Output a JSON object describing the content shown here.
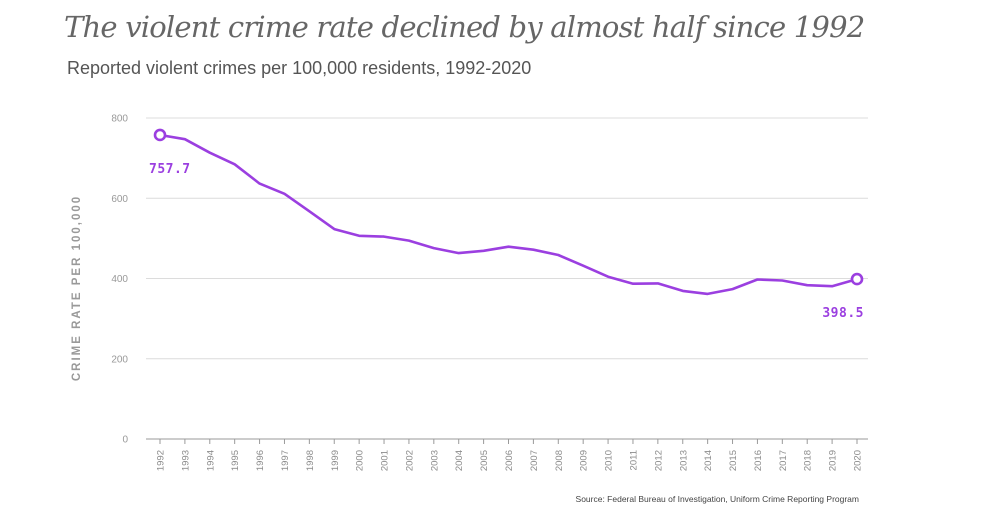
{
  "header": {
    "title": "The violent crime rate declined by almost half since 1992",
    "subtitle": "Reported violent crimes per 100,000 residents, 1992-2020"
  },
  "footer": {
    "source": "Source: Federal Bureau of Investigation, Uniform Crime Reporting Program"
  },
  "chart_data": {
    "type": "line",
    "title": "The violent crime rate declined by almost half since 1992",
    "subtitle": "Reported violent crimes per 100,000 residents, 1992-2020",
    "xlabel": "",
    "ylabel": "CRIME RATE PER 100,000",
    "ylim": [
      0,
      800
    ],
    "yticks": [
      0,
      200,
      400,
      600,
      800
    ],
    "grid": "horizontal",
    "legend": "none",
    "color": "#9b3fe0",
    "x": [
      "1992",
      "1993",
      "1994",
      "1995",
      "1996",
      "1997",
      "1998",
      "1999",
      "2000",
      "2001",
      "2002",
      "2003",
      "2004",
      "2005",
      "2006",
      "2007",
      "2008",
      "2009",
      "2010",
      "2011",
      "2012",
      "2013",
      "2014",
      "2015",
      "2016",
      "2017",
      "2018",
      "2019",
      "2020"
    ],
    "series": [
      {
        "values": [
          757.7,
          747.1,
          713.6,
          684.5,
          636.6,
          611.0,
          567.6,
          523.0,
          506.5,
          504.5,
          494.4,
          475.8,
          463.2,
          469.0,
          479.3,
          471.8,
          458.6,
          431.9,
          404.5,
          387.1,
          387.8,
          369.1,
          361.6,
          373.7,
          397.5,
          394.9,
          383.4,
          380.8,
          398.5
        ]
      }
    ],
    "annotations": [
      {
        "year": "1992",
        "value": 757.7,
        "label": "757.7"
      },
      {
        "year": "2020",
        "value": 398.5,
        "label": "398.5"
      }
    ]
  }
}
